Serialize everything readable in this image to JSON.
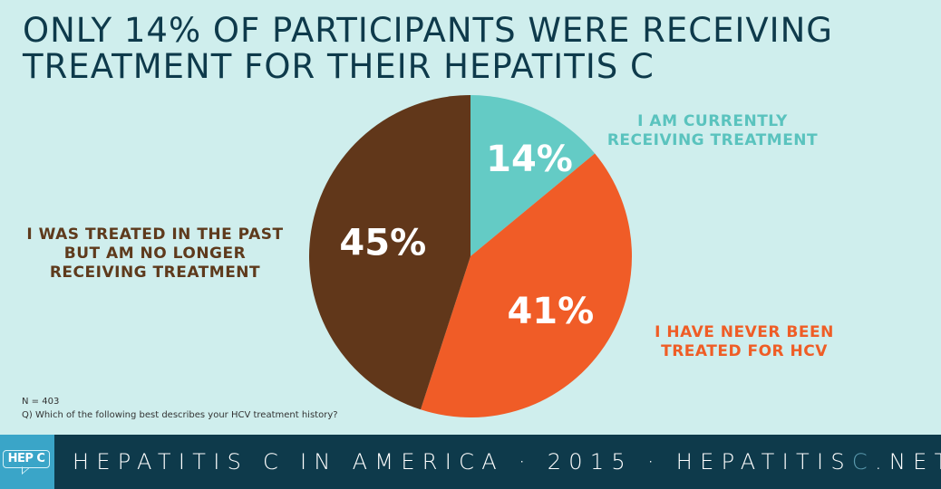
{
  "title": {
    "line1": "ONLY 14% OF PARTICIPANTS WERE RECEIVING",
    "line2": "TREATMENT FOR THEIR HEPATITIS C"
  },
  "chart_data": {
    "type": "pie",
    "title": "ONLY 14% OF PARTICIPANTS WERE RECEIVING TREATMENT FOR THEIR HEPATITIS C",
    "start": "12 o'clock, clockwise",
    "slices": [
      {
        "key": "current",
        "label": "I AM CURRENTLY RECEIVING TREATMENT",
        "label_lines": [
          "I AM CURRENTLY",
          "RECEIVING TREATMENT"
        ],
        "value": 14,
        "display": "14%",
        "color": "#64cbc5"
      },
      {
        "key": "never",
        "label": "I HAVE NEVER BEEN TREATED FOR HCV",
        "label_lines": [
          "I HAVE NEVER BEEN",
          "TREATED FOR HCV"
        ],
        "value": 41,
        "display": "41%",
        "color": "#f05c27"
      },
      {
        "key": "past",
        "label": "I WAS TREATED IN THE PAST BUT AM NO LONGER RECEIVING TREATMENT",
        "label_lines": [
          "I WAS TREATED IN THE PAST",
          "BUT AM NO LONGER",
          "RECEIVING TREATMENT"
        ],
        "value": 45,
        "display": "45%",
        "color": "#61371a"
      }
    ],
    "value_label_color": "#ffffff",
    "legend": "none (direct labels)"
  },
  "notes": {
    "n": "N = 403",
    "question": "Q) Which of the following best describes your HCV treatment history?"
  },
  "footer": {
    "logo_text": "HEP C",
    "text_main": "HEPATITIS C IN AMERICA · 2015 · HEPATITIS",
    "text_accent": "C",
    "text_tail": ".NET",
    "background": "#0e3a4b",
    "logo_background": "#3aa5c8"
  }
}
